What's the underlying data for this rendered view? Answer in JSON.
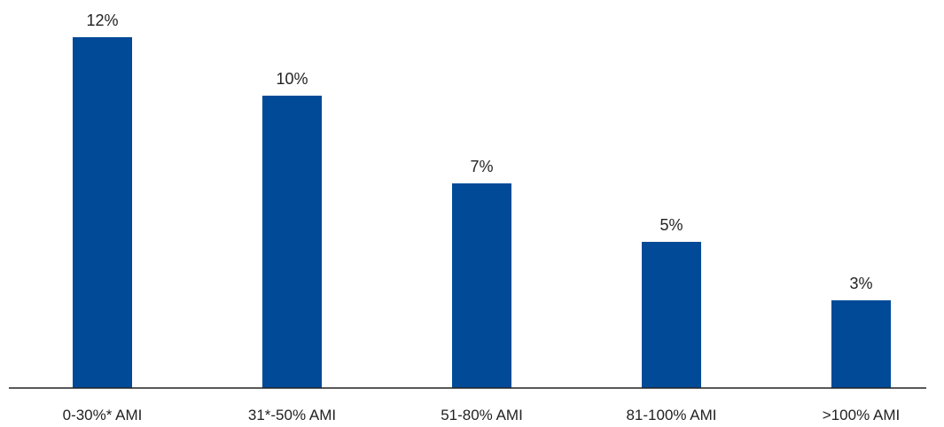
{
  "chart_data": {
    "type": "bar",
    "categories": [
      "0-30%* AMI",
      "31*-50% AMI",
      "51-80% AMI",
      "81-100% AMI",
      ">100% AMI"
    ],
    "values": [
      12,
      10,
      7,
      5,
      3
    ],
    "value_labels": [
      "12%",
      "10%",
      "7%",
      "5%",
      "3%"
    ],
    "unit": "%",
    "title": "",
    "xlabel": "",
    "ylabel": "",
    "ylim": [
      0,
      15
    ],
    "grid": false,
    "legend": "none",
    "colors": {
      "bar": "#004a98",
      "axis": "#222222",
      "text": "#222222"
    }
  }
}
